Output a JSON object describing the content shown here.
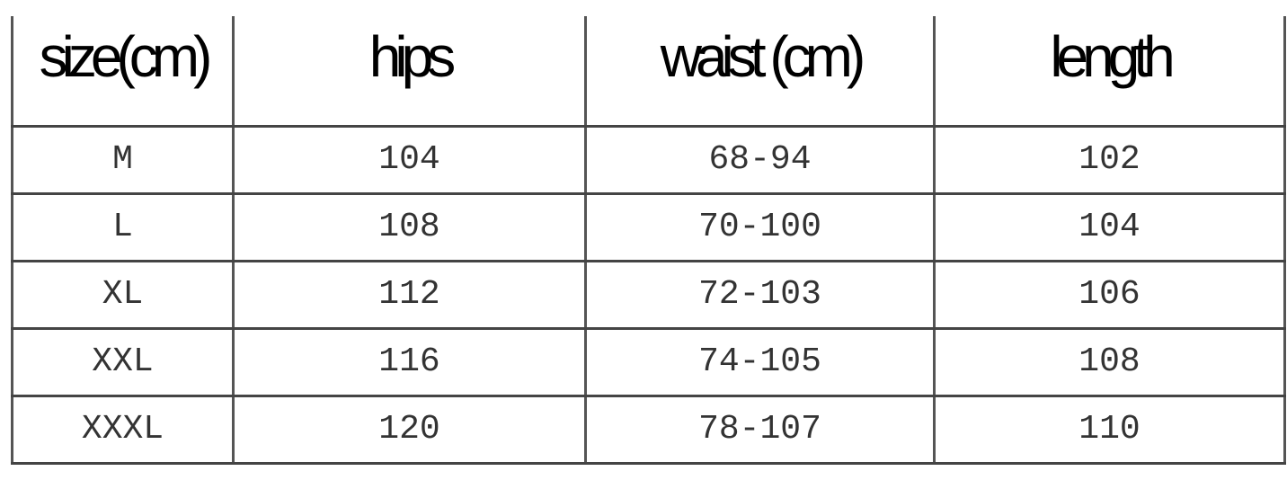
{
  "table": {
    "headers": [
      "size(cm)",
      "hips",
      "waist (cm)",
      "length"
    ],
    "rows": [
      [
        "M",
        "104",
        "68-94",
        "102"
      ],
      [
        "L",
        "108",
        "70-100",
        "104"
      ],
      [
        "XL",
        "112",
        "72-103",
        "106"
      ],
      [
        "XXL",
        "116",
        "74-105",
        "108"
      ],
      [
        "XXXL",
        "120",
        "78-107",
        "110"
      ]
    ]
  }
}
